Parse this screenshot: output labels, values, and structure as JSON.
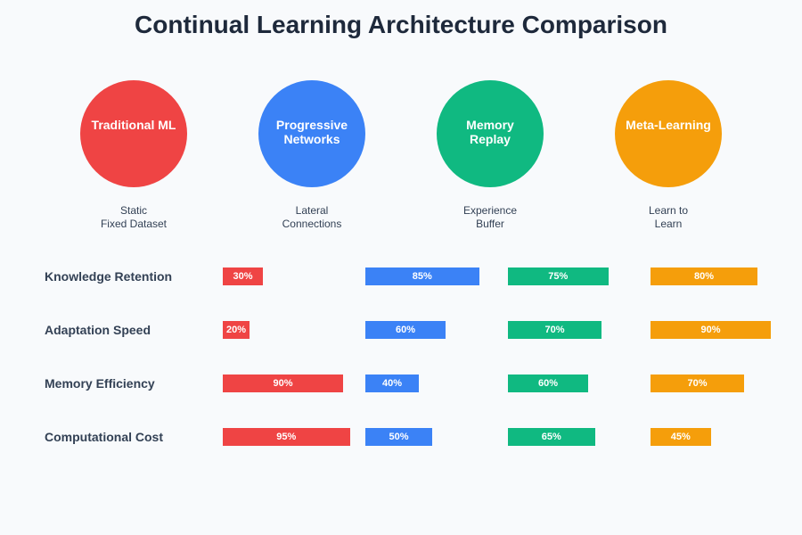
{
  "title": "Continual Learning Architecture Comparison",
  "architectures": [
    {
      "name": "Traditional ML",
      "name_lines": [
        "Traditional ML"
      ],
      "desc_lines": [
        "Static",
        "Fixed Dataset"
      ],
      "color": "#ef4444"
    },
    {
      "name": "Progressive Networks",
      "name_lines": [
        "Progressive",
        "Networks"
      ],
      "desc_lines": [
        "Lateral",
        "Connections"
      ],
      "color": "#3b82f6"
    },
    {
      "name": "Memory Replay",
      "name_lines": [
        "Memory",
        "Replay"
      ],
      "desc_lines": [
        "Experience",
        "Buffer"
      ],
      "color": "#10b981"
    },
    {
      "name": "Meta-Learning",
      "name_lines": [
        "Meta-Learning"
      ],
      "desc_lines": [
        "Learn to",
        "Learn"
      ],
      "color": "#f59e0b"
    }
  ],
  "chart_data": {
    "type": "bar",
    "orientation": "horizontal",
    "categories": [
      "Knowledge Retention",
      "Adaptation Speed",
      "Memory Efficiency",
      "Computational Cost"
    ],
    "unit": "%",
    "series": [
      {
        "name": "Traditional ML",
        "values": [
          30,
          20,
          90,
          95
        ],
        "color": "#ef4444"
      },
      {
        "name": "Progressive Networks",
        "values": [
          85,
          60,
          40,
          50
        ],
        "color": "#3b82f6"
      },
      {
        "name": "Memory Replay",
        "values": [
          75,
          70,
          60,
          65
        ],
        "color": "#10b981"
      },
      {
        "name": "Meta-Learning",
        "values": [
          80,
          90,
          70,
          45
        ],
        "color": "#f59e0b"
      }
    ]
  }
}
